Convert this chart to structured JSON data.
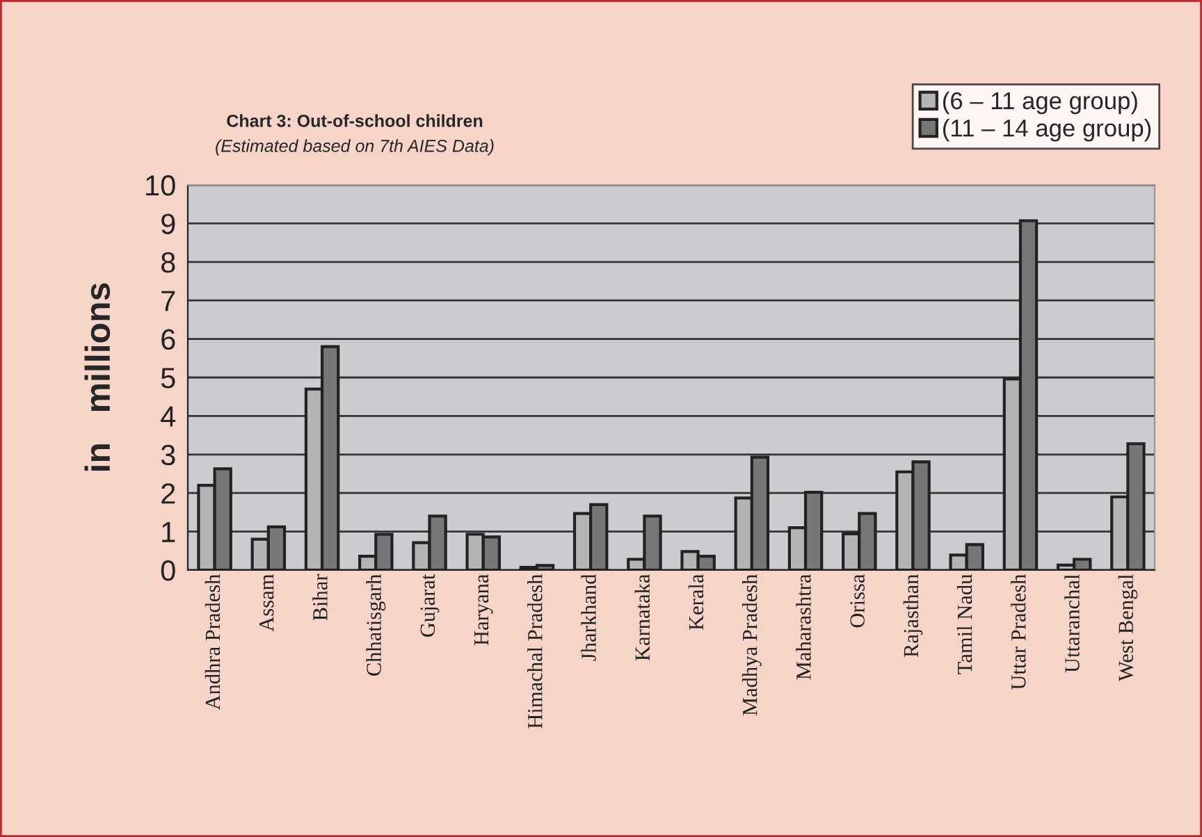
{
  "chart_data": {
    "type": "bar",
    "title": "Chart 3: Out-of-school children",
    "subtitle": "(Estimated based on 7th AIES Data)",
    "ylabel": "in   millions",
    "categories": [
      "Andhra Pradesh",
      "Assam",
      "Bihar",
      "Chhatisgarh",
      "Gujarat",
      "Haryana",
      "Himachal Pradesh",
      "Jharkhand",
      "Karnataka",
      "Kerala",
      "Madhya Pradesh",
      "Maharashtra",
      "Orissa",
      "Rajasthan",
      "Tamil Nadu",
      "Uttar Pradesh",
      "Uttaranchal",
      "West Bengal"
    ],
    "series": [
      {
        "name": "(6 – 11 age group)",
        "color": "#b4b4b4",
        "values": [
          2.2,
          0.8,
          4.7,
          0.36,
          0.71,
          0.93,
          0.07,
          1.47,
          0.28,
          0.48,
          1.87,
          1.1,
          0.94,
          2.55,
          0.39,
          4.96,
          0.13,
          1.9
        ]
      },
      {
        "name": "(11 – 14 age group)",
        "color": "#777777",
        "values": [
          2.63,
          1.12,
          5.8,
          0.93,
          1.4,
          0.86,
          0.12,
          1.7,
          1.4,
          0.36,
          2.93,
          2.02,
          1.47,
          2.81,
          0.66,
          9.07,
          0.28,
          3.28
        ]
      }
    ],
    "ylim": [
      0,
      10
    ],
    "yticks": [
      0,
      1,
      2,
      3,
      4,
      5,
      6,
      7,
      8,
      9,
      10
    ],
    "grid": "y",
    "legend": "top right"
  }
}
